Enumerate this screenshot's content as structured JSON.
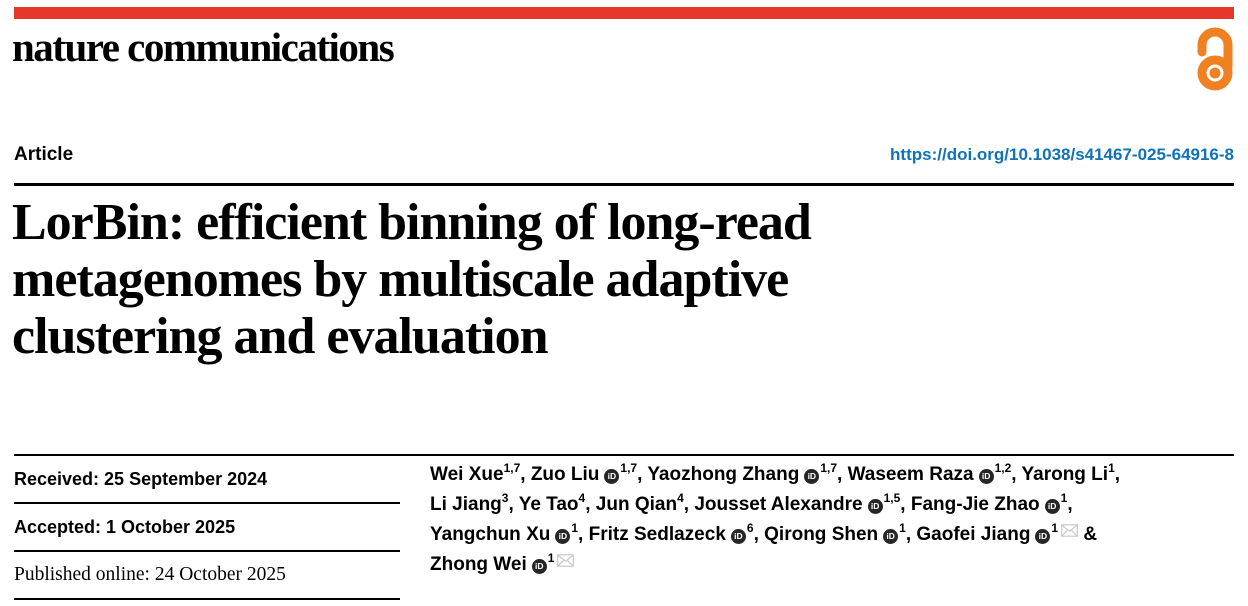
{
  "brand": {
    "name": "nature communications"
  },
  "header": {
    "article_label": "Article",
    "doi": "https://doi.org/10.1038/s41467-025-64916-8"
  },
  "title_lines": [
    "LorBin: efficient binning of long-read",
    "metagenomes by multiscale adaptive",
    "clustering and evaluation"
  ],
  "dates": {
    "received": "Received: 25 September 2024",
    "accepted": "Accepted: 1 October 2025",
    "published": "Published online: 24 October 2025"
  },
  "icons": {
    "open_access": "open-access-icon",
    "orcid": "orcid-icon",
    "orcid_glyph": "iD",
    "envelope": "envelope-icon"
  },
  "colors": {
    "accent_red": "#e5372c",
    "open_access_orange": "#f08122",
    "doi_blue": "#1173b7",
    "rule_black": "#000000",
    "orcid_black": "#262626",
    "envelope_gray": "#c9c9c9"
  },
  "authors": {
    "lines": [
      [
        {
          "name": "Wei Xue",
          "sup": "1,7",
          "orcid": false,
          "sep": ", "
        },
        {
          "name": "Zuo Liu",
          "sup": "1,7",
          "orcid": true,
          "sep": ", "
        },
        {
          "name": "Yaozhong Zhang",
          "sup": "1,7",
          "orcid": true,
          "sep": ", "
        },
        {
          "name": "Waseem Raza",
          "sup": "1,2",
          "orcid": true,
          "sep": ", "
        },
        {
          "name": "Yarong Li",
          "sup": "1",
          "orcid": false,
          "sep": ","
        }
      ],
      [
        {
          "name": "Li Jiang",
          "sup": "3",
          "orcid": false,
          "sep": ", "
        },
        {
          "name": "Ye Tao",
          "sup": "4",
          "orcid": false,
          "sep": ", "
        },
        {
          "name": "Jun Qian",
          "sup": "4",
          "orcid": false,
          "sep": ", "
        },
        {
          "name": "Jousset Alexandre",
          "sup": "1,5",
          "orcid": true,
          "sep": ", "
        },
        {
          "name": "Fang-Jie Zhao",
          "sup": "1",
          "orcid": true,
          "sep": ","
        }
      ],
      [
        {
          "name": "Yangchun Xu",
          "sup": "1",
          "orcid": true,
          "sep": ", "
        },
        {
          "name": "Fritz Sedlazeck",
          "sup": "6",
          "orcid": true,
          "sep": ", "
        },
        {
          "name": "Qirong Shen",
          "sup": "1",
          "orcid": true,
          "sep": ", "
        },
        {
          "name": "Gaofei Jiang",
          "sup": "1",
          "orcid": true,
          "envelope": true,
          "sep": " &"
        }
      ],
      [
        {
          "name": "Zhong Wei",
          "sup": "1",
          "orcid": true,
          "envelope": true,
          "sep": ""
        }
      ]
    ]
  }
}
